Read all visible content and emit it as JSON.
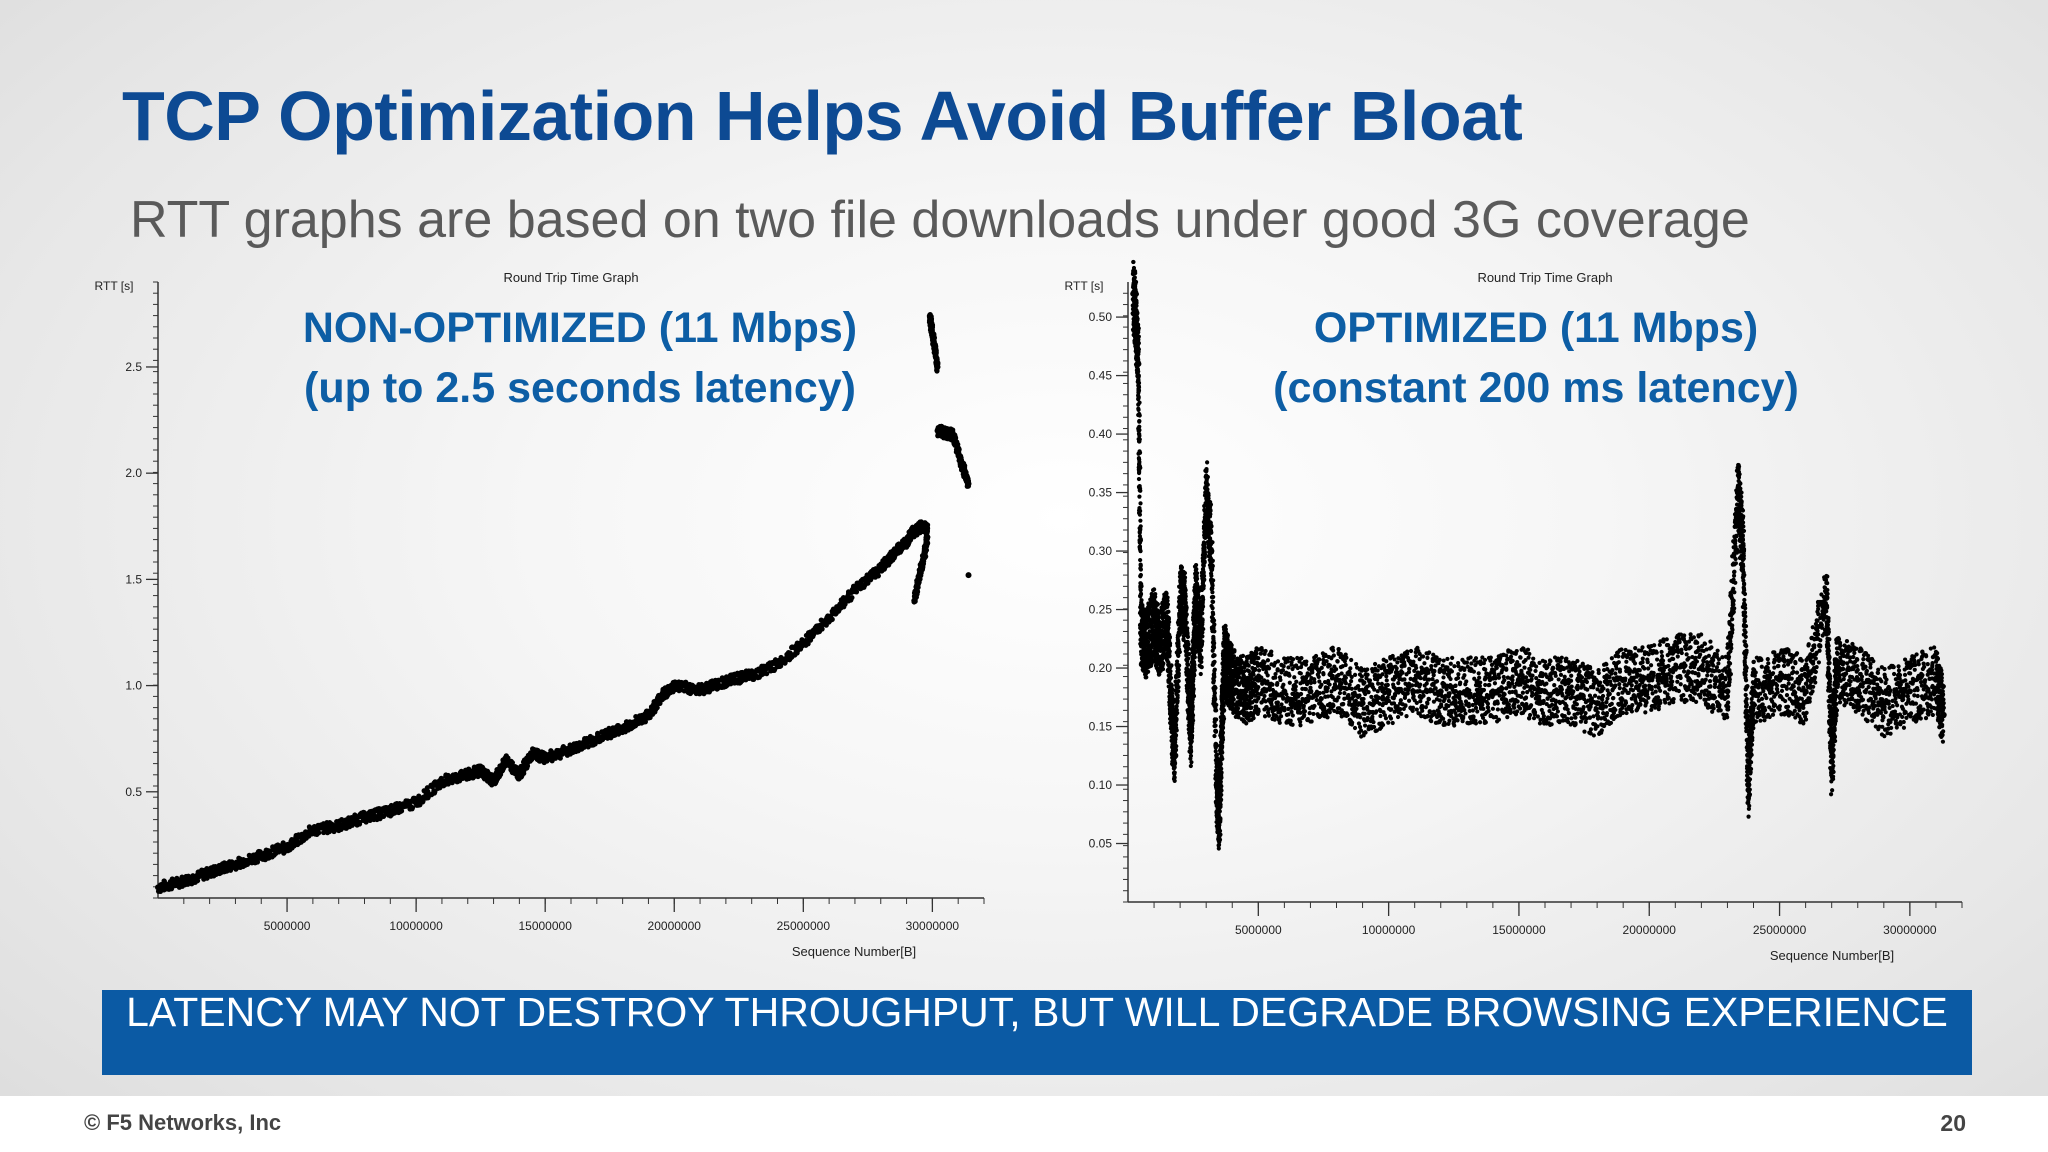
{
  "slide": {
    "title": "TCP Optimization Helps Avoid Buffer Bloat",
    "subtitle": "RTT graphs are based on two file downloads under good 3G coverage",
    "banner": "LATENCY MAY NOT DESTROY THROUGHPUT, BUT WILL DEGRADE BROWSING EXPERIENCE",
    "footer_copyright": "© F5 Networks, Inc",
    "page_number": "20"
  },
  "charts": [
    {
      "overlay_line1": "NON-OPTIMIZED (11 Mbps)",
      "overlay_line2": "(up to 2.5 seconds latency)"
    },
    {
      "overlay_line1": "OPTIMIZED (11 Mbps)",
      "overlay_line2": "(constant 200 ms latency)"
    }
  ],
  "chart_data": [
    {
      "type": "scatter",
      "title": "Round Trip Time Graph",
      "xlabel": "Sequence Number[B]",
      "ylabel": "RTT [s]",
      "xlim": [
        0,
        32000000
      ],
      "ylim": [
        0,
        2.9
      ],
      "x_ticks": [
        5000000,
        10000000,
        15000000,
        20000000,
        25000000,
        30000000
      ],
      "x_tick_labels": [
        "5000000",
        "10000000",
        "15000000",
        "20000000",
        "25000000",
        "30000000"
      ],
      "y_ticks": [
        0.5,
        1.0,
        1.5,
        2.0,
        2.5
      ],
      "y_tick_labels": [
        "0.5",
        "1.0",
        "1.5",
        "2.0",
        "2.5"
      ],
      "series": [
        {
          "color": "#000000",
          "x": [
            0,
            1000000,
            2000000,
            3000000,
            4000000,
            5000000,
            6000000,
            7000000,
            8000000,
            9000000,
            10000000,
            11000000,
            12000000,
            12500000,
            13000000,
            13500000,
            14000000,
            14500000,
            15000000,
            16000000,
            17000000,
            18000000,
            19000000,
            19500000,
            20000000,
            21000000,
            22000000,
            23000000,
            24000000,
            25000000,
            26000000,
            27000000,
            28000000,
            28500000,
            29000000,
            29200000,
            29600000,
            29800000
          ],
          "y": [
            0.05,
            0.08,
            0.12,
            0.16,
            0.2,
            0.24,
            0.32,
            0.34,
            0.38,
            0.41,
            0.45,
            0.55,
            0.58,
            0.6,
            0.55,
            0.65,
            0.58,
            0.68,
            0.66,
            0.7,
            0.75,
            0.8,
            0.86,
            0.95,
            1.0,
            0.98,
            1.02,
            1.05,
            1.1,
            1.2,
            1.32,
            1.45,
            1.55,
            1.62,
            1.68,
            1.72,
            1.75,
            1.74
          ]
        },
        {
          "color": "#000000",
          "x": [
            29300000,
            29500000,
            29700000,
            29800000
          ],
          "y": [
            1.4,
            1.52,
            1.62,
            1.7
          ]
        },
        {
          "color": "#000000",
          "x": [
            29900000,
            30000000,
            30100000,
            30200000
          ],
          "y": [
            2.74,
            2.66,
            2.58,
            2.5
          ]
        },
        {
          "color": "#000000",
          "x": [
            30200000,
            30500000,
            30800000,
            31000000,
            31200000,
            31400000
          ],
          "y": [
            2.2,
            2.19,
            2.18,
            2.1,
            2.02,
            1.95
          ]
        },
        {
          "color": "#000000",
          "x": [
            31400000
          ],
          "y": [
            1.52
          ]
        }
      ]
    },
    {
      "type": "scatter",
      "title": "Round Trip Time Graph",
      "xlabel": "Sequence Number[B]",
      "ylabel": "RTT [s]",
      "xlim": [
        0,
        32000000
      ],
      "ylim": [
        0,
        0.53
      ],
      "x_ticks": [
        5000000,
        10000000,
        15000000,
        20000000,
        25000000,
        30000000
      ],
      "x_tick_labels": [
        "5000000",
        "10000000",
        "15000000",
        "20000000",
        "25000000",
        "30000000"
      ],
      "y_ticks": [
        0.05,
        0.1,
        0.15,
        0.2,
        0.25,
        0.3,
        0.35,
        0.4,
        0.45,
        0.5
      ],
      "y_tick_labels": [
        "0.05",
        "0.10",
        "0.15",
        "0.20",
        "0.25",
        "0.30",
        "0.35",
        "0.40",
        "0.45",
        "0.50"
      ],
      "series": [
        {
          "color": "#000000",
          "x": [
            200000,
            300000,
            400000,
            500000,
            700000,
            1000000,
            1200000,
            1500000,
            1700000,
            1800000,
            2000000,
            2200000,
            2400000,
            2500000,
            2600000,
            2800000,
            3000000,
            3200000,
            3400000,
            3500000,
            3600000,
            3700000,
            3800000,
            4000000,
            4500000,
            5000000,
            6000000,
            7000000,
            8000000,
            9000000,
            10000000,
            11000000,
            12000000,
            13000000,
            14000000,
            15000000,
            16000000,
            17000000,
            18000000,
            19000000,
            20000000,
            21000000,
            22000000,
            23000000,
            23400000,
            23600000,
            23800000,
            24000000,
            25000000,
            26000000,
            26800000,
            27000000,
            27200000,
            28000000,
            29000000,
            30000000,
            31000000,
            31300000
          ],
          "y": [
            0.52,
            0.5,
            0.46,
            0.23,
            0.22,
            0.24,
            0.22,
            0.24,
            0.15,
            0.13,
            0.26,
            0.25,
            0.14,
            0.2,
            0.26,
            0.22,
            0.35,
            0.3,
            0.1,
            0.07,
            0.15,
            0.21,
            0.2,
            0.19,
            0.18,
            0.19,
            0.18,
            0.18,
            0.19,
            0.17,
            0.18,
            0.19,
            0.18,
            0.18,
            0.18,
            0.19,
            0.18,
            0.18,
            0.17,
            0.19,
            0.19,
            0.2,
            0.2,
            0.18,
            0.35,
            0.3,
            0.1,
            0.18,
            0.19,
            0.18,
            0.26,
            0.12,
            0.2,
            0.19,
            0.17,
            0.18,
            0.19,
            0.16
          ]
        }
      ]
    }
  ]
}
